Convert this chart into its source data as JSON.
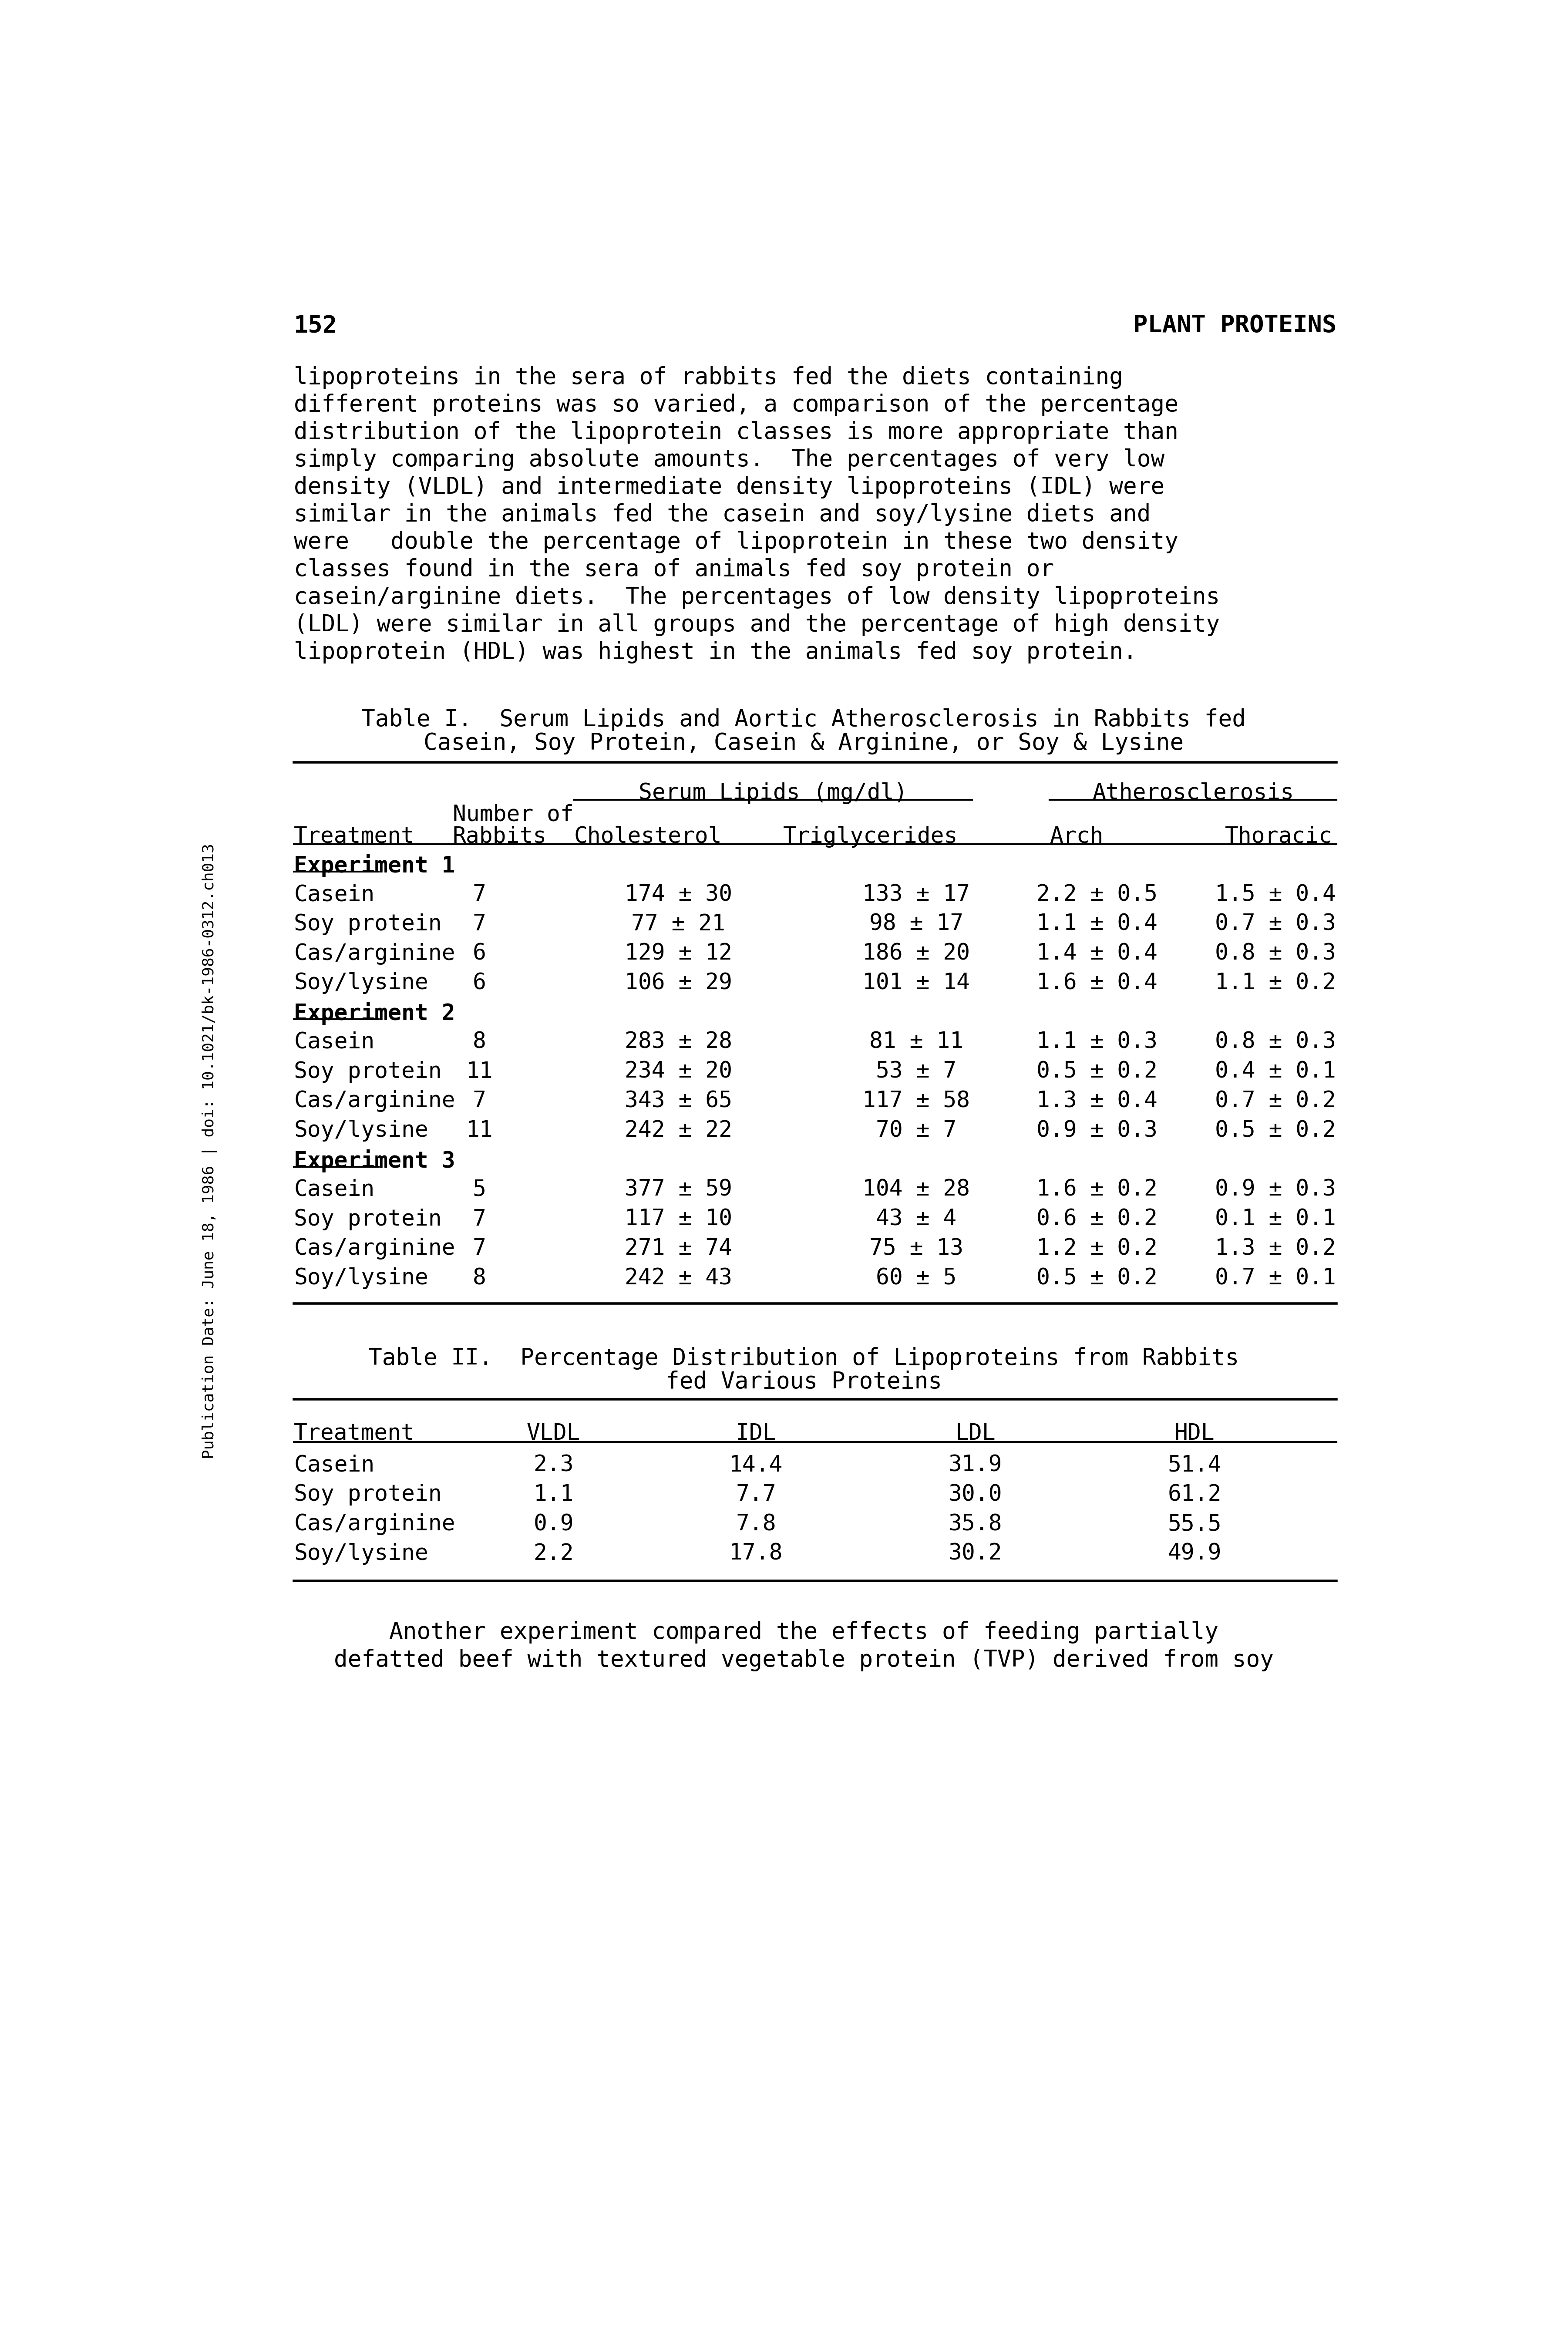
{
  "page_num": "152",
  "page_header_right": "PLANT PROTEINS",
  "sidebar_text": "Publication Date: June 18, 1986 | doi: 10.1021/bk-1986-0312.ch013",
  "body_text": [
    "lipoproteins in the sera of rabbits fed the diets containing",
    "different proteins was so varied, a comparison of the percentage",
    "distribution of the lipoprotein classes is more appropriate than",
    "simply comparing absolute amounts.  The percentages of very low",
    "density (VLDL) and intermediate density lipoproteins (IDL) were",
    "similar in the animals fed the casein and soy/lysine diets and",
    "were   double the percentage of lipoprotein in these two density",
    "classes found in the sera of animals fed soy protein or",
    "casein/arginine diets.  The percentages of low density lipoproteins",
    "(LDL) were similar in all groups and the percentage of high density",
    "lipoprotein (HDL) was highest in the animals fed soy protein."
  ],
  "table1_title_line1": "Table I.  Serum Lipids and Aortic Atherosclerosis in Rabbits fed",
  "table1_title_line2": "Casein, Soy Protein, Casein & Arginine, or Soy & Lysine",
  "table1_subheader1": "Serum Lipids (mg/dl)",
  "table1_subheader2": "Atherosclerosis",
  "table1_data": [
    [
      "Experiment 1",
      "",
      "",
      "",
      "",
      ""
    ],
    [
      "Casein",
      "7",
      "174 ± 30",
      "133 ± 17",
      "2.2 ± 0.5",
      "1.5 ± 0.4"
    ],
    [
      "Soy protein",
      "7",
      "77 ± 21",
      "98 ± 17",
      "1.1 ± 0.4",
      "0.7 ± 0.3"
    ],
    [
      "Cas/arginine",
      "6",
      "129 ± 12",
      "186 ± 20",
      "1.4 ± 0.4",
      "0.8 ± 0.3"
    ],
    [
      "Soy/lysine",
      "6",
      "106 ± 29",
      "101 ± 14",
      "1.6 ± 0.4",
      "1.1 ± 0.2"
    ],
    [
      "Experiment 2",
      "",
      "",
      "",
      "",
      ""
    ],
    [
      "Casein",
      "8",
      "283 ± 28",
      "81 ± 11",
      "1.1 ± 0.3",
      "0.8 ± 0.3"
    ],
    [
      "Soy protein",
      "11",
      "234 ± 20",
      "53 ± 7",
      "0.5 ± 0.2",
      "0.4 ± 0.1"
    ],
    [
      "Cas/arginine",
      "7",
      "343 ± 65",
      "117 ± 58",
      "1.3 ± 0.4",
      "0.7 ± 0.2"
    ],
    [
      "Soy/lysine",
      "11",
      "242 ± 22",
      "70 ± 7",
      "0.9 ± 0.3",
      "0.5 ± 0.2"
    ],
    [
      "Experiment 3",
      "",
      "",
      "",
      "",
      ""
    ],
    [
      "Casein",
      "5",
      "377 ± 59",
      "104 ± 28",
      "1.6 ± 0.2",
      "0.9 ± 0.3"
    ],
    [
      "Soy protein",
      "7",
      "117 ± 10",
      "43 ± 4",
      "0.6 ± 0.2",
      "0.1 ± 0.1"
    ],
    [
      "Cas/arginine",
      "7",
      "271 ± 74",
      "75 ± 13",
      "1.2 ± 0.2",
      "1.3 ± 0.2"
    ],
    [
      "Soy/lysine",
      "8",
      "242 ± 43",
      "60 ± 5",
      "0.5 ± 0.2",
      "0.7 ± 0.1"
    ]
  ],
  "table2_title_line1": "Table II.  Percentage Distribution of Lipoproteins from Rabbits",
  "table2_title_line2": "fed Various Proteins",
  "table2_headers": [
    "Treatment",
    "VLDL",
    "IDL",
    "LDL",
    "HDL"
  ],
  "table2_data": [
    [
      "Casein",
      "2.3",
      "14.4",
      "31.9",
      "51.4"
    ],
    [
      "Soy protein",
      "1.1",
      "7.7",
      "30.0",
      "61.2"
    ],
    [
      "Cas/arginine",
      "0.9",
      "7.8",
      "35.8",
      "55.5"
    ],
    [
      "Soy/lysine",
      "2.2",
      "17.8",
      "30.2",
      "49.9"
    ]
  ],
  "bottom_text": [
    "Another experiment compared the effects of feeding partially",
    "defatted beef with textured vegetable protein (TVP) derived from soy"
  ],
  "bg_color": "#ffffff",
  "text_color": "#000000"
}
